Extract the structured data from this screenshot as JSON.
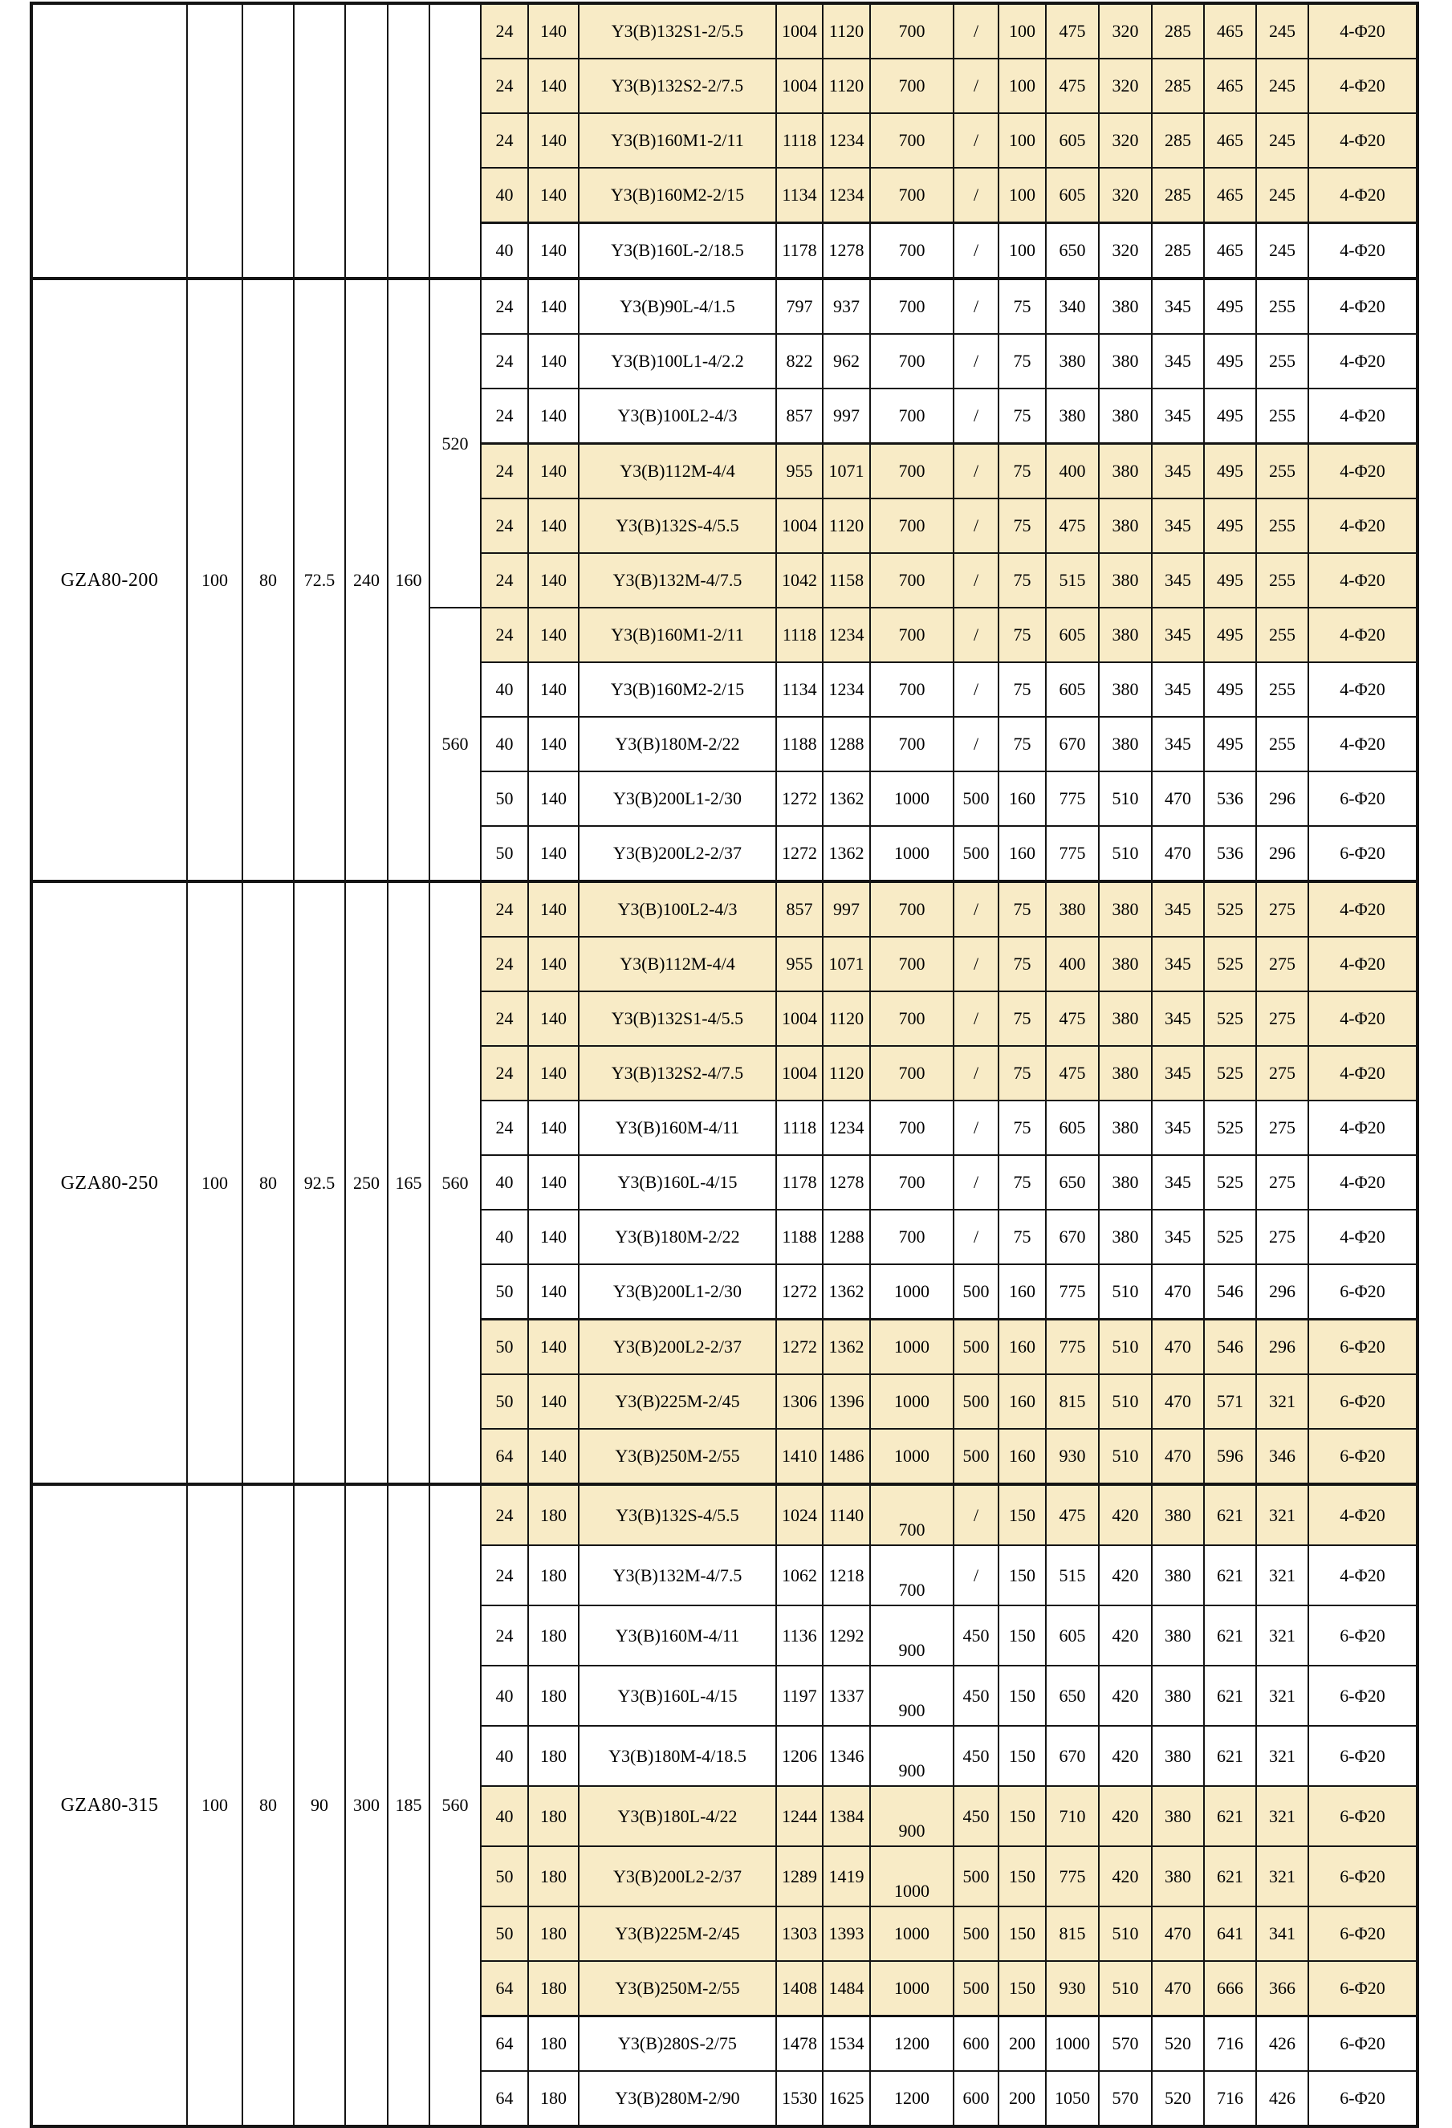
{
  "meta": {
    "highlight_color": "#F8EBC6",
    "border_color": "#141414",
    "phi_hole_note": "Φ = U+03A6"
  },
  "table": {
    "sections": [
      {
        "group": {
          "model": "",
          "a": "",
          "b": "",
          "c": "",
          "d": "",
          "e": ""
        },
        "f_cells": [
          {
            "label": "",
            "span": 5
          }
        ],
        "rows": [
          {
            "hl": true,
            "cells": [
              "24",
              "140",
              "Y3(B)132S1-2/5.5",
              "1004",
              "1120",
              "700",
              "/",
              "100",
              "475",
              "320",
              "285",
              "465",
              "245",
              "4-Φ20"
            ]
          },
          {
            "hl": true,
            "cells": [
              "24",
              "140",
              "Y3(B)132S2-2/7.5",
              "1004",
              "1120",
              "700",
              "/",
              "100",
              "475",
              "320",
              "285",
              "465",
              "245",
              "4-Φ20"
            ]
          },
          {
            "hl": true,
            "cells": [
              "24",
              "140",
              "Y3(B)160M1-2/11",
              "1118",
              "1234",
              "700",
              "/",
              "100",
              "605",
              "320",
              "285",
              "465",
              "245",
              "4-Φ20"
            ]
          },
          {
            "hl": true,
            "cells": [
              "40",
              "140",
              "Y3(B)160M2-2/15",
              "1134",
              "1234",
              "700",
              "/",
              "100",
              "605",
              "320",
              "285",
              "465",
              "245",
              "4-Φ20"
            ]
          },
          {
            "hl": false,
            "thick_top": true,
            "cells": [
              "40",
              "140",
              "Y3(B)160L-2/18.5",
              "1178",
              "1278",
              "700",
              "/",
              "100",
              "650",
              "320",
              "285",
              "465",
              "245",
              "4-Φ20"
            ]
          }
        ]
      },
      {
        "group": {
          "model": "GZA80-200",
          "a": "100",
          "b": "80",
          "c": "72.5",
          "d": "240",
          "e": "160"
        },
        "f_cells": [
          {
            "label": "520",
            "span": 6
          },
          {
            "label": "560",
            "span": 5
          }
        ],
        "rows": [
          {
            "hl": false,
            "cells": [
              "24",
              "140",
              "Y3(B)90L-4/1.5",
              "797",
              "937",
              "700",
              "/",
              "75",
              "340",
              "380",
              "345",
              "495",
              "255",
              "4-Φ20"
            ]
          },
          {
            "hl": false,
            "cells": [
              "24",
              "140",
              "Y3(B)100L1-4/2.2",
              "822",
              "962",
              "700",
              "/",
              "75",
              "380",
              "380",
              "345",
              "495",
              "255",
              "4-Φ20"
            ]
          },
          {
            "hl": false,
            "cells": [
              "24",
              "140",
              "Y3(B)100L2-4/3",
              "857",
              "997",
              "700",
              "/",
              "75",
              "380",
              "380",
              "345",
              "495",
              "255",
              "4-Φ20"
            ]
          },
          {
            "hl": true,
            "thick_top": true,
            "cells": [
              "24",
              "140",
              "Y3(B)112M-4/4",
              "955",
              "1071",
              "700",
              "/",
              "75",
              "400",
              "380",
              "345",
              "495",
              "255",
              "4-Φ20"
            ]
          },
          {
            "hl": true,
            "cells": [
              "24",
              "140",
              "Y3(B)132S-4/5.5",
              "1004",
              "1120",
              "700",
              "/",
              "75",
              "475",
              "380",
              "345",
              "495",
              "255",
              "4-Φ20"
            ]
          },
          {
            "hl": true,
            "cells": [
              "24",
              "140",
              "Y3(B)132M-4/7.5",
              "1042",
              "1158",
              "700",
              "/",
              "75",
              "515",
              "380",
              "345",
              "495",
              "255",
              "4-Φ20"
            ]
          },
          {
            "hl": true,
            "cells": [
              "24",
              "140",
              "Y3(B)160M1-2/11",
              "1118",
              "1234",
              "700",
              "/",
              "75",
              "605",
              "380",
              "345",
              "495",
              "255",
              "4-Φ20"
            ]
          },
          {
            "hl": false,
            "cells": [
              "40",
              "140",
              "Y3(B)160M2-2/15",
              "1134",
              "1234",
              "700",
              "/",
              "75",
              "605",
              "380",
              "345",
              "495",
              "255",
              "4-Φ20"
            ]
          },
          {
            "hl": false,
            "cells": [
              "40",
              "140",
              "Y3(B)180M-2/22",
              "1188",
              "1288",
              "700",
              "/",
              "75",
              "670",
              "380",
              "345",
              "495",
              "255",
              "4-Φ20"
            ]
          },
          {
            "hl": false,
            "cells": [
              "50",
              "140",
              "Y3(B)200L1-2/30",
              "1272",
              "1362",
              "1000",
              "500",
              "160",
              "775",
              "510",
              "470",
              "536",
              "296",
              "6-Φ20"
            ]
          },
          {
            "hl": false,
            "cells": [
              "50",
              "140",
              "Y3(B)200L2-2/37",
              "1272",
              "1362",
              "1000",
              "500",
              "160",
              "775",
              "510",
              "470",
              "536",
              "296",
              "6-Φ20"
            ]
          }
        ]
      },
      {
        "group": {
          "model": "GZA80-250",
          "a": "100",
          "b": "80",
          "c": "92.5",
          "d": "250",
          "e": "165"
        },
        "f_cells": [
          {
            "label": "560",
            "span": 11
          }
        ],
        "rows": [
          {
            "hl": true,
            "cells": [
              "24",
              "140",
              "Y3(B)100L2-4/3",
              "857",
              "997",
              "700",
              "/",
              "75",
              "380",
              "380",
              "345",
              "525",
              "275",
              "4-Φ20"
            ]
          },
          {
            "hl": true,
            "cells": [
              "24",
              "140",
              "Y3(B)112M-4/4",
              "955",
              "1071",
              "700",
              "/",
              "75",
              "400",
              "380",
              "345",
              "525",
              "275",
              "4-Φ20"
            ]
          },
          {
            "hl": true,
            "cells": [
              "24",
              "140",
              "Y3(B)132S1-4/5.5",
              "1004",
              "1120",
              "700",
              "/",
              "75",
              "475",
              "380",
              "345",
              "525",
              "275",
              "4-Φ20"
            ]
          },
          {
            "hl": true,
            "cells": [
              "24",
              "140",
              "Y3(B)132S2-4/7.5",
              "1004",
              "1120",
              "700",
              "/",
              "75",
              "475",
              "380",
              "345",
              "525",
              "275",
              "4-Φ20"
            ]
          },
          {
            "hl": false,
            "cells": [
              "24",
              "140",
              "Y3(B)160M-4/11",
              "1118",
              "1234",
              "700",
              "/",
              "75",
              "605",
              "380",
              "345",
              "525",
              "275",
              "4-Φ20"
            ]
          },
          {
            "hl": false,
            "cells": [
              "40",
              "140",
              "Y3(B)160L-4/15",
              "1178",
              "1278",
              "700",
              "/",
              "75",
              "650",
              "380",
              "345",
              "525",
              "275",
              "4-Φ20"
            ]
          },
          {
            "hl": false,
            "cells": [
              "40",
              "140",
              "Y3(B)180M-2/22",
              "1188",
              "1288",
              "700",
              "/",
              "75",
              "670",
              "380",
              "345",
              "525",
              "275",
              "4-Φ20"
            ]
          },
          {
            "hl": false,
            "cells": [
              "50",
              "140",
              "Y3(B)200L1-2/30",
              "1272",
              "1362",
              "1000",
              "500",
              "160",
              "775",
              "510",
              "470",
              "546",
              "296",
              "6-Φ20"
            ]
          },
          {
            "hl": true,
            "thick_top": true,
            "cells": [
              "50",
              "140",
              "Y3(B)200L2-2/37",
              "1272",
              "1362",
              "1000",
              "500",
              "160",
              "775",
              "510",
              "470",
              "546",
              "296",
              "6-Φ20"
            ]
          },
          {
            "hl": true,
            "cells": [
              "50",
              "140",
              "Y3(B)225M-2/45",
              "1306",
              "1396",
              "1000",
              "500",
              "160",
              "815",
              "510",
              "470",
              "571",
              "321",
              "6-Φ20"
            ]
          },
          {
            "hl": true,
            "cells": [
              "64",
              "140",
              "Y3(B)250M-2/55",
              "1410",
              "1486",
              "1000",
              "500",
              "160",
              "930",
              "510",
              "470",
              "596",
              "346",
              "6-Φ20"
            ]
          }
        ]
      },
      {
        "group": {
          "model": "GZA80-315",
          "a": "100",
          "b": "80",
          "c": "90",
          "d": "300",
          "e": "185"
        },
        "f_cells": [
          {
            "label": "560",
            "span": 11
          }
        ],
        "rows": [
          {
            "hl": true,
            "low_d": true,
            "cells": [
              "24",
              "180",
              "Y3(B)132S-4/5.5",
              "1024",
              "1140",
              "700",
              "/",
              "150",
              "475",
              "420",
              "380",
              "621",
              "321",
              "4-Φ20"
            ]
          },
          {
            "hl": false,
            "low_d": true,
            "cells": [
              "24",
              "180",
              "Y3(B)132M-4/7.5",
              "1062",
              "1218",
              "700",
              "/",
              "150",
              "515",
              "420",
              "380",
              "621",
              "321",
              "4-Φ20"
            ]
          },
          {
            "hl": false,
            "low_d": true,
            "cells": [
              "24",
              "180",
              "Y3(B)160M-4/11",
              "1136",
              "1292",
              "900",
              "450",
              "150",
              "605",
              "420",
              "380",
              "621",
              "321",
              "6-Φ20"
            ]
          },
          {
            "hl": false,
            "low_d": true,
            "cells": [
              "40",
              "180",
              "Y3(B)160L-4/15",
              "1197",
              "1337",
              "900",
              "450",
              "150",
              "650",
              "420",
              "380",
              "621",
              "321",
              "6-Φ20"
            ]
          },
          {
            "hl": false,
            "low_d": true,
            "cells": [
              "40",
              "180",
              "Y3(B)180M-4/18.5",
              "1206",
              "1346",
              "900",
              "450",
              "150",
              "670",
              "420",
              "380",
              "621",
              "321",
              "6-Φ20"
            ]
          },
          {
            "hl": true,
            "low_d": true,
            "cells": [
              "40",
              "180",
              "Y3(B)180L-4/22",
              "1244",
              "1384",
              "900",
              "450",
              "150",
              "710",
              "420",
              "380",
              "621",
              "321",
              "6-Φ20"
            ]
          },
          {
            "hl": true,
            "low_d": true,
            "cells": [
              "50",
              "180",
              "Y3(B)200L2-2/37",
              "1289",
              "1419",
              "1000",
              "500",
              "150",
              "775",
              "420",
              "380",
              "621",
              "321",
              "6-Φ20"
            ]
          },
          {
            "hl": true,
            "cells": [
              "50",
              "180",
              "Y3(B)225M-2/45",
              "1303",
              "1393",
              "1000",
              "500",
              "150",
              "815",
              "510",
              "470",
              "641",
              "341",
              "6-Φ20"
            ]
          },
          {
            "hl": true,
            "cells": [
              "64",
              "180",
              "Y3(B)250M-2/55",
              "1408",
              "1484",
              "1000",
              "500",
              "150",
              "930",
              "510",
              "470",
              "666",
              "366",
              "6-Φ20"
            ]
          },
          {
            "hl": false,
            "thick_top": true,
            "cells": [
              "64",
              "180",
              "Y3(B)280S-2/75",
              "1478",
              "1534",
              "1200",
              "600",
              "200",
              "1000",
              "570",
              "520",
              "716",
              "426",
              "6-Φ20"
            ]
          },
          {
            "hl": false,
            "cells": [
              "64",
              "180",
              "Y3(B)280M-2/90",
              "1530",
              "1625",
              "1200",
              "600",
              "200",
              "1050",
              "570",
              "520",
              "716",
              "426",
              "6-Φ20"
            ]
          }
        ]
      }
    ]
  }
}
